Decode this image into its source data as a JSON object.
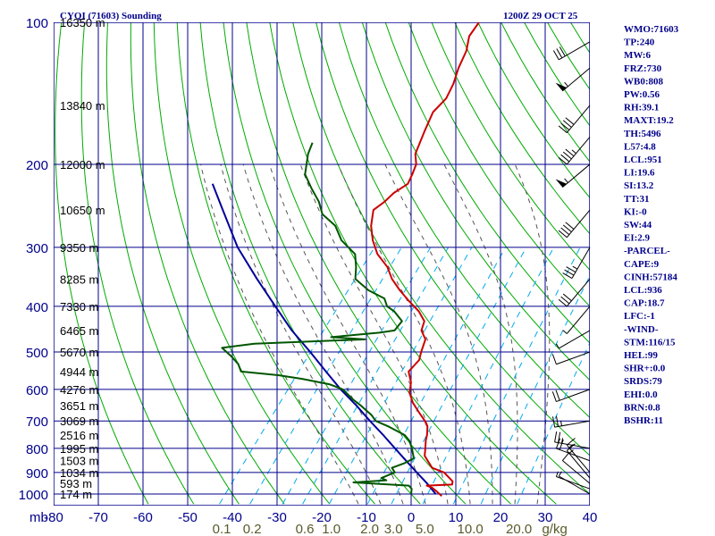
{
  "header": {
    "title": "CYQI (71603) Sounding",
    "date": "1200Z 29 OCT 25"
  },
  "chart_data": {
    "type": "skew-t",
    "pressure_levels": [
      100,
      200,
      300,
      400,
      500,
      600,
      700,
      800,
      900,
      1000
    ],
    "pressure_axis_label": "mb",
    "temp_ticks": [
      -80,
      -70,
      -60,
      -50,
      -40,
      -30,
      -20,
      -10,
      0,
      10,
      20,
      30,
      40
    ],
    "temp_tick_labels": [
      "-80",
      "-70",
      "-60",
      "-50",
      "-40",
      "-30",
      "-20",
      "-10",
      "0",
      "10",
      "20",
      "30",
      "40"
    ],
    "mixing_ratio_labels": [
      {
        "text": "0.1",
        "value": 0.1
      },
      {
        "text": "0.2",
        "value": 0.2
      },
      {
        "text": "0.6",
        "value": 0.6
      },
      {
        "text": "1.0",
        "value": 1.0
      },
      {
        "text": "2.0",
        "value": 2.0
      },
      {
        "text": "3.0",
        "value": 3.0
      },
      {
        "text": "5.0",
        "value": 5.0
      },
      {
        "text": "10.0",
        "value": 10.0
      },
      {
        "text": "20.0",
        "value": 20.0
      },
      {
        "text": "g/kg",
        "value": null
      }
    ],
    "height_labels": [
      {
        "p": 100,
        "text": "16350 m"
      },
      {
        "p": 150,
        "text": "13840 m"
      },
      {
        "p": 200,
        "text": "12000 m"
      },
      {
        "p": 250,
        "text": "10650 m"
      },
      {
        "p": 300,
        "text": "9350 m"
      },
      {
        "p": 350,
        "text": "8285 m"
      },
      {
        "p": 400,
        "text": "7330 m"
      },
      {
        "p": 450,
        "text": "6465 m"
      },
      {
        "p": 500,
        "text": "5670 m"
      },
      {
        "p": 550,
        "text": "4944 m"
      },
      {
        "p": 600,
        "text": "4276 m"
      },
      {
        "p": 650,
        "text": "3651 m"
      },
      {
        "p": 700,
        "text": "3069 m"
      },
      {
        "p": 750,
        "text": "2516 m"
      },
      {
        "p": 800,
        "text": "1995 m"
      },
      {
        "p": 850,
        "text": "1503 m"
      },
      {
        "p": 900,
        "text": "1034 m"
      },
      {
        "p": 950,
        "text": "593 m"
      },
      {
        "p": 1000,
        "text": "174 m"
      }
    ],
    "temperature": [
      [
        1010,
        7.2
      ],
      [
        990,
        5.5
      ],
      [
        970,
        3.6
      ],
      [
        960,
        2.0
      ],
      [
        955,
        7.5
      ],
      [
        940,
        7.0
      ],
      [
        900,
        3.5
      ],
      [
        880,
        0.0
      ],
      [
        860,
        -1.5
      ],
      [
        830,
        -3.8
      ],
      [
        800,
        -5.0
      ],
      [
        770,
        -6.3
      ],
      [
        750,
        -7.0
      ],
      [
        720,
        -8.4
      ],
      [
        700,
        -10.0
      ],
      [
        670,
        -13.0
      ],
      [
        640,
        -16.0
      ],
      [
        610,
        -18.5
      ],
      [
        580,
        -20.0
      ],
      [
        550,
        -22.5
      ],
      [
        520,
        -22.2
      ],
      [
        500,
        -23.2
      ],
      [
        470,
        -24.5
      ],
      [
        450,
        -27.0
      ],
      [
        430,
        -28.0
      ],
      [
        410,
        -31.0
      ],
      [
        390,
        -35.0
      ],
      [
        370,
        -39.0
      ],
      [
        350,
        -42.8
      ],
      [
        330,
        -46.0
      ],
      [
        310,
        -50.5
      ],
      [
        290,
        -54.0
      ],
      [
        270,
        -57.0
      ],
      [
        250,
        -59.3
      ],
      [
        240,
        -58.3
      ],
      [
        230,
        -57.8
      ],
      [
        220,
        -56.3
      ],
      [
        210,
        -57.0
      ],
      [
        200,
        -57.9
      ],
      [
        190,
        -60.0
      ],
      [
        170,
        -62.0
      ],
      [
        155,
        -63.5
      ],
      [
        145,
        -63.0
      ],
      [
        135,
        -64.0
      ],
      [
        125,
        -65.7
      ],
      [
        115,
        -67.0
      ],
      [
        107,
        -69.0
      ],
      [
        100,
        -69.3
      ]
    ],
    "dewpoint": [
      [
        1000,
        0.0
      ],
      [
        975,
        -0.8
      ],
      [
        960,
        -2.0
      ],
      [
        945,
        -15.0
      ],
      [
        935,
        -8.0
      ],
      [
        925,
        -9.5
      ],
      [
        900,
        -7.5
      ],
      [
        880,
        -9.0
      ],
      [
        860,
        -7.0
      ],
      [
        840,
        -5.8
      ],
      [
        800,
        -8.0
      ],
      [
        770,
        -10.0
      ],
      [
        750,
        -12.0
      ],
      [
        720,
        -17.0
      ],
      [
        700,
        -21.0
      ],
      [
        680,
        -23.0
      ],
      [
        650,
        -27.0
      ],
      [
        630,
        -30.0
      ],
      [
        600,
        -34.0
      ],
      [
        585,
        -38.0
      ],
      [
        570,
        -45.0
      ],
      [
        560,
        -51.0
      ],
      [
        550,
        -60.0
      ],
      [
        530,
        -62.0
      ],
      [
        510,
        -65.0
      ],
      [
        490,
        -68.5
      ],
      [
        480,
        -62.0
      ],
      [
        470,
        -38.0
      ],
      [
        465,
        -46.0
      ],
      [
        455,
        -36.0
      ],
      [
        450,
        -33.0
      ],
      [
        440,
        -33.0
      ],
      [
        430,
        -33.0
      ],
      [
        410,
        -36.5
      ],
      [
        400,
        -39.0
      ],
      [
        385,
        -41.0
      ],
      [
        370,
        -46.0
      ],
      [
        350,
        -51.0
      ],
      [
        330,
        -53.0
      ],
      [
        310,
        -55.5
      ],
      [
        290,
        -61.0
      ],
      [
        270,
        -65.0
      ],
      [
        255,
        -70.0
      ],
      [
        240,
        -73.0
      ],
      [
        225,
        -77.0
      ],
      [
        210,
        -81.0
      ],
      [
        190,
        -84.0
      ],
      [
        180,
        -85.0
      ]
    ],
    "parcel": [
      [
        1000,
        5.5
      ],
      [
        950,
        1.7
      ],
      [
        900,
        -2.6
      ],
      [
        850,
        -7.1
      ],
      [
        800,
        -11.8
      ],
      [
        750,
        -16.8
      ],
      [
        700,
        -22.3
      ],
      [
        650,
        -28.0
      ],
      [
        600,
        -34.5
      ],
      [
        550,
        -41.0
      ],
      [
        500,
        -48.0
      ],
      [
        450,
        -56.0
      ],
      [
        400,
        -64.0
      ],
      [
        350,
        -73.0
      ],
      [
        300,
        -83.0
      ],
      [
        250,
        -93.0
      ],
      [
        220,
        -100.0
      ]
    ],
    "wind_barbs": [
      {
        "p": 1000,
        "dir": 300,
        "speed": 5
      },
      {
        "p": 975,
        "dir": 290,
        "speed": 8
      },
      {
        "p": 950,
        "dir": 310,
        "speed": 10
      },
      {
        "p": 925,
        "dir": 320,
        "speed": 15
      },
      {
        "p": 900,
        "dir": 320,
        "speed": 18
      },
      {
        "p": 850,
        "dir": 290,
        "speed": 20
      },
      {
        "p": 800,
        "dir": 280,
        "speed": 25
      },
      {
        "p": 700,
        "dir": 260,
        "speed": 25
      },
      {
        "p": 600,
        "dir": 250,
        "speed": 20
      },
      {
        "p": 500,
        "dir": 250,
        "speed": 10
      },
      {
        "p": 450,
        "dir": 240,
        "speed": 5
      },
      {
        "p": 400,
        "dir": 220,
        "speed": 5
      },
      {
        "p": 350,
        "dir": 220,
        "speed": 30
      },
      {
        "p": 300,
        "dir": 210,
        "speed": 35
      },
      {
        "p": 250,
        "dir": 220,
        "speed": 40
      },
      {
        "p": 200,
        "dir": 230,
        "speed": 55
      },
      {
        "p": 175,
        "dir": 220,
        "speed": 45
      },
      {
        "p": 150,
        "dir": 220,
        "speed": 40
      },
      {
        "p": 125,
        "dir": 230,
        "speed": 55
      },
      {
        "p": 110,
        "dir": 240,
        "speed": 30
      }
    ],
    "colors": {
      "grid": "#00008b",
      "temperature": "#cc0000",
      "dewpoint": "#005500",
      "parcel": "#000099",
      "dry_adiabat": "#00aa00",
      "moist_adiabat": "#555555",
      "mixing_ratio": "#00aaee",
      "text": "#00008b"
    }
  },
  "indices": [
    "WMO:71603",
    "TP:240",
    "MW:6",
    "FRZ:730",
    "WB0:808",
    "PW:0.56",
    "RH:39.1",
    "MAXT:19.2",
    "TH:5496",
    "L57:4.8",
    "LCL:951",
    "LI:19.6",
    "SI:13.2",
    "TT:31",
    "KI:-0",
    "SW:44",
    "EI:2.9",
    "-PARCEL-",
    "CAPE:9",
    "CINH:57184",
    "LCL:936",
    "CAP:18.7",
    "LFC:-1",
    "-WIND-",
    "STM:116/15",
    "HEL:99",
    "SHR+:0.0",
    "SRDS:79",
    "EHI:0.0",
    "BRN:0.8",
    "BSHR:11"
  ]
}
